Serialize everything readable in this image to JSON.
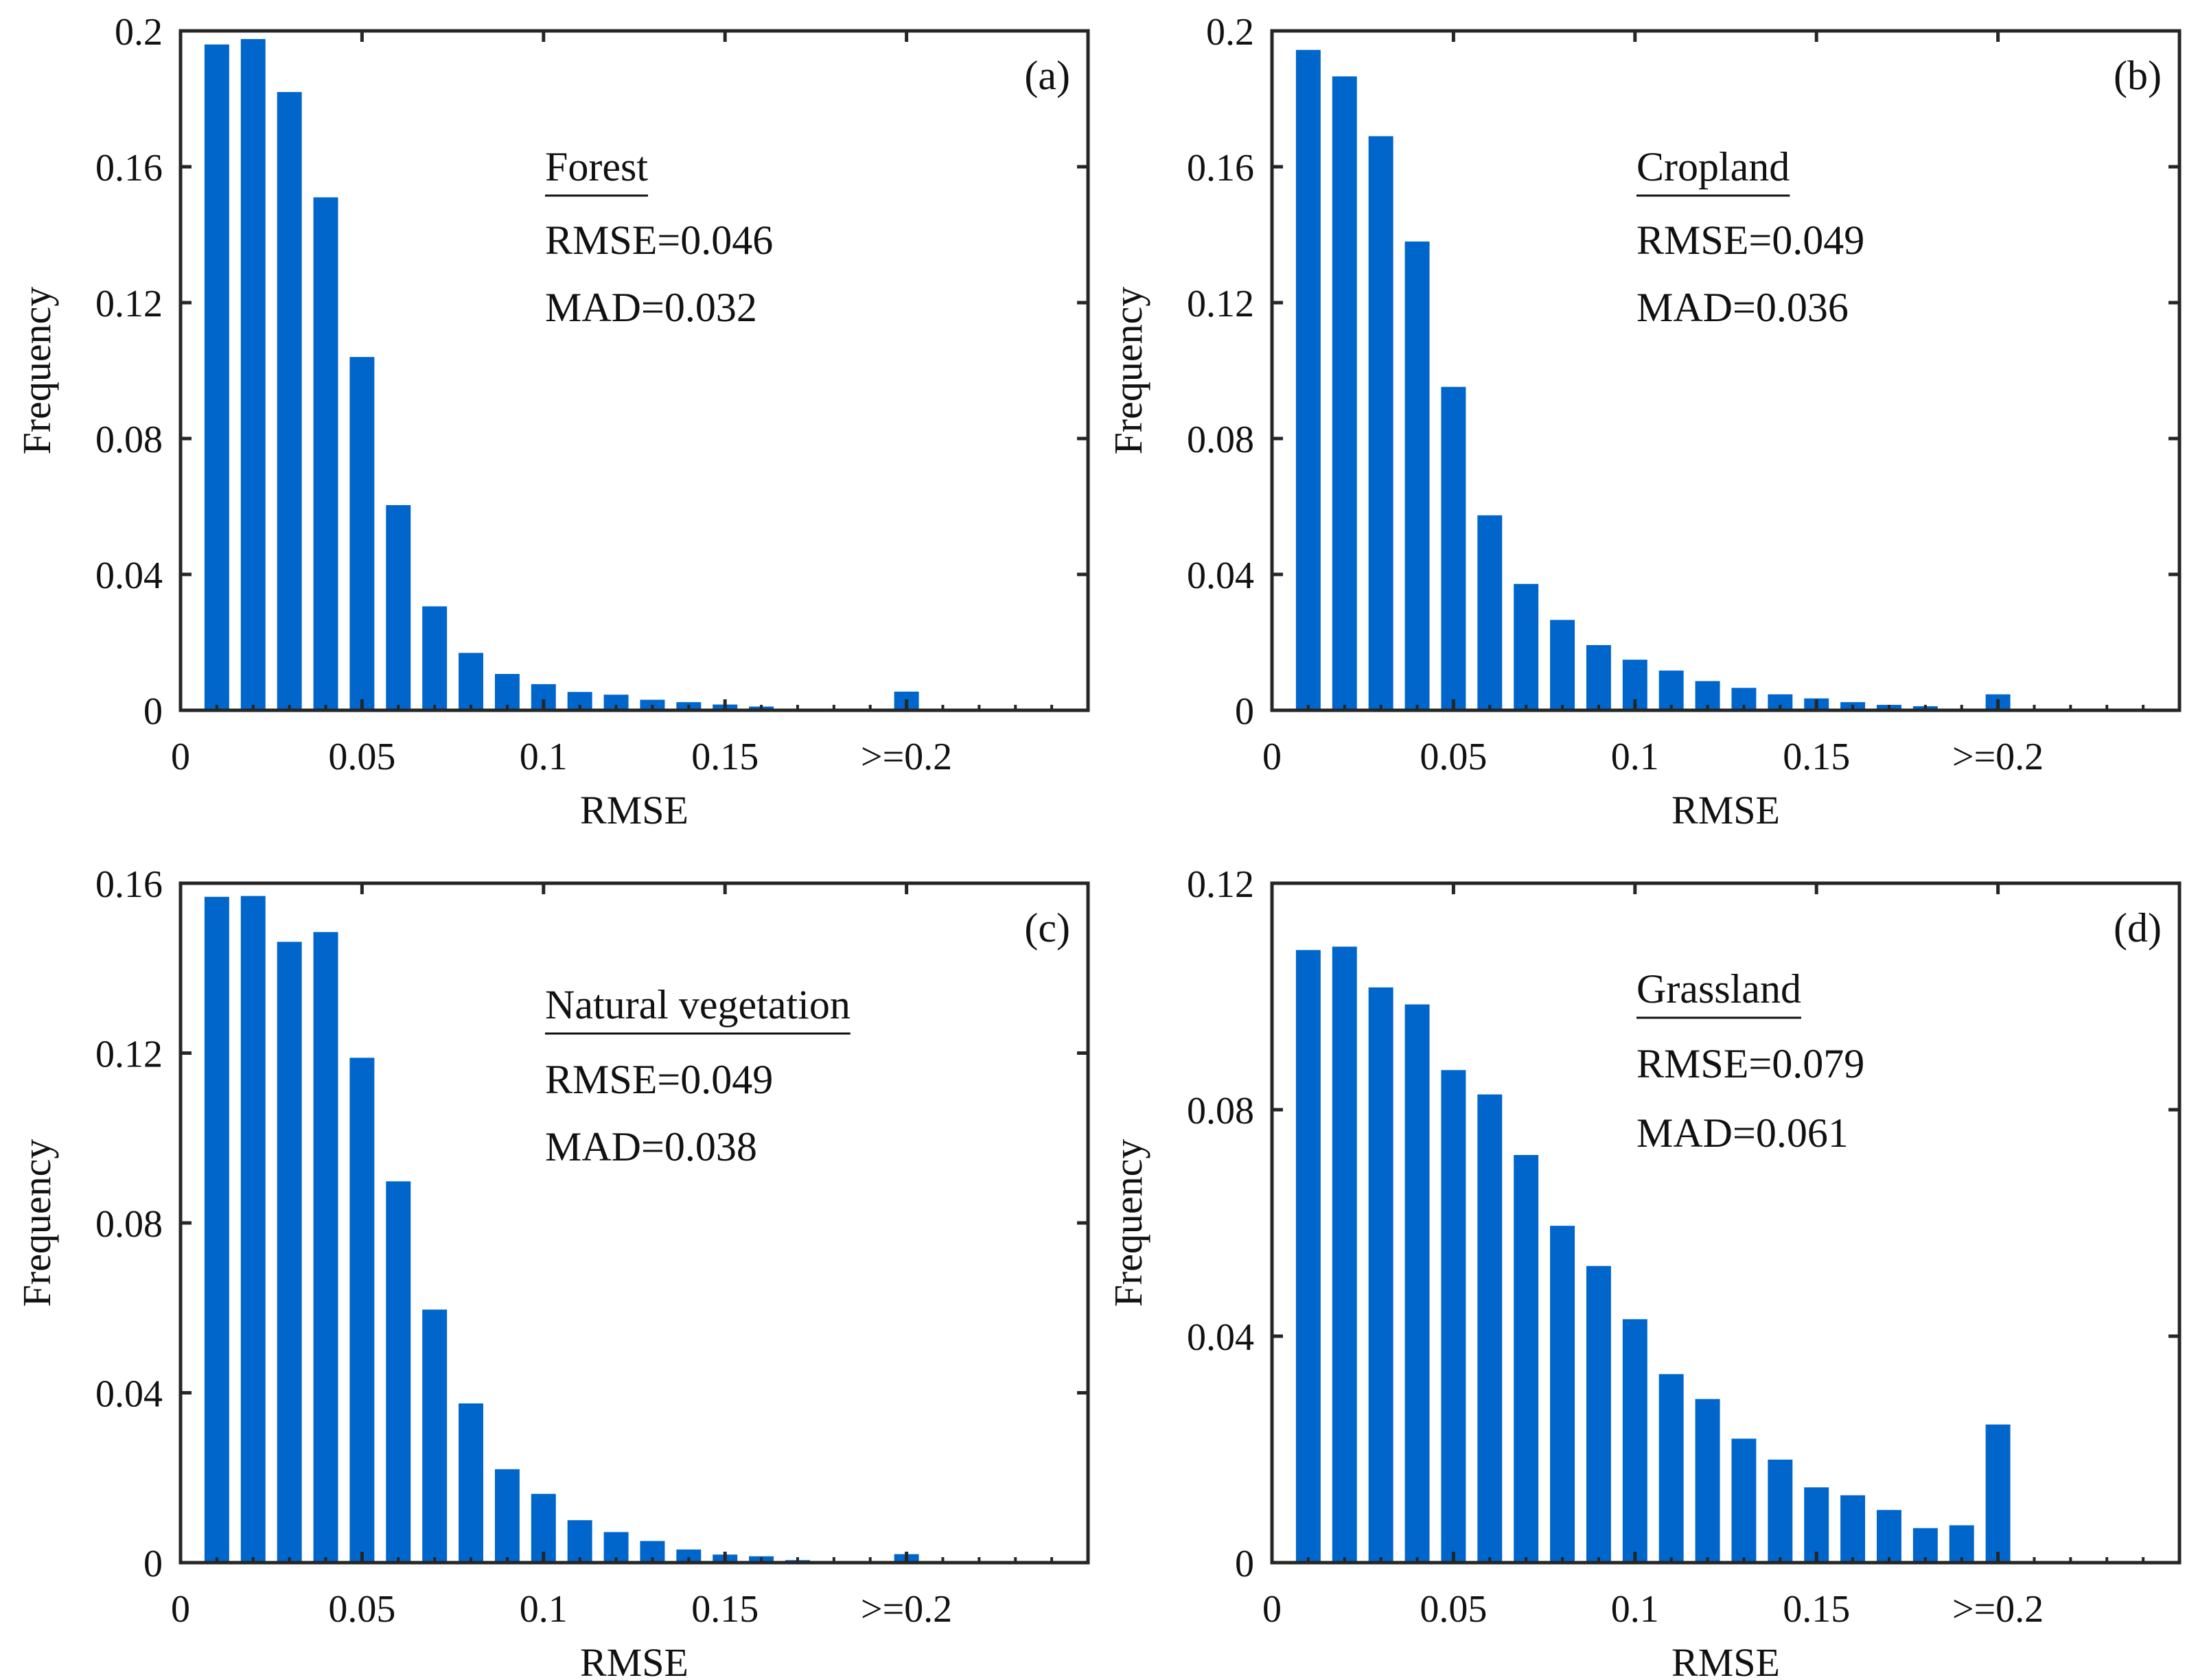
{
  "colors": {
    "bar": "#0066CC",
    "axis": "#262626"
  },
  "chart_data": [
    {
      "type": "bar",
      "panel": "(a)",
      "title": "Forest",
      "annotations": [
        "RMSE=0.046",
        "MAD=0.032"
      ],
      "xlabel": "RMSE",
      "ylabel": "Frequency",
      "xlim": [
        0,
        0.25
      ],
      "ylim": [
        0,
        0.2
      ],
      "xticks": [
        0,
        0.05,
        0.1,
        0.15,
        0.2
      ],
      "xtick_labels": [
        "0",
        "0.05",
        "0.1",
        "0.15",
        ">=0.2"
      ],
      "yticks": [
        0,
        0.04,
        0.08,
        0.12,
        0.16,
        0.2
      ],
      "ytick_labels": [
        "0",
        "0.04",
        "0.08",
        "0.12",
        "0.16",
        "0.2"
      ],
      "x": [
        0.01,
        0.02,
        0.03,
        0.04,
        0.05,
        0.06,
        0.07,
        0.08,
        0.09,
        0.1,
        0.11,
        0.12,
        0.13,
        0.14,
        0.15,
        0.16,
        0.17,
        0.18,
        0.19,
        0.2
      ],
      "values": [
        0.196,
        0.1976,
        0.182,
        0.151,
        0.104,
        0.0604,
        0.0306,
        0.0169,
        0.0107,
        0.0077,
        0.0054,
        0.0046,
        0.0031,
        0.0024,
        0.0017,
        0.0011,
        0.0005,
        0,
        0,
        0.0055
      ]
    },
    {
      "type": "bar",
      "panel": "(b)",
      "title": "Cropland",
      "annotations": [
        "RMSE=0.049",
        "MAD=0.036"
      ],
      "xlabel": "RMSE",
      "ylabel": "Frequency",
      "xlim": [
        0,
        0.25
      ],
      "ylim": [
        0,
        0.2
      ],
      "xticks": [
        0,
        0.05,
        0.1,
        0.15,
        0.2
      ],
      "xtick_labels": [
        "0",
        "0.05",
        "0.1",
        "0.15",
        ">=0.2"
      ],
      "yticks": [
        0,
        0.04,
        0.08,
        0.12,
        0.16,
        0.2
      ],
      "ytick_labels": [
        "0",
        "0.04",
        "0.08",
        "0.12",
        "0.16",
        "0.2"
      ],
      "x": [
        0.01,
        0.02,
        0.03,
        0.04,
        0.05,
        0.06,
        0.07,
        0.08,
        0.09,
        0.1,
        0.11,
        0.12,
        0.13,
        0.14,
        0.15,
        0.16,
        0.17,
        0.18,
        0.19,
        0.2
      ],
      "values": [
        0.1944,
        0.1866,
        0.169,
        0.138,
        0.0952,
        0.0574,
        0.0372,
        0.0266,
        0.0192,
        0.0149,
        0.0117,
        0.0086,
        0.0066,
        0.0047,
        0.0035,
        0.0024,
        0.0016,
        0.0012,
        0.0005,
        0.0047
      ]
    },
    {
      "type": "bar",
      "panel": "(c)",
      "title": "Natural vegetation",
      "annotations": [
        "RMSE=0.049",
        "MAD=0.038"
      ],
      "xlabel": "RMSE",
      "ylabel": "Frequency",
      "xlim": [
        0,
        0.25
      ],
      "ylim": [
        0,
        0.16
      ],
      "xticks": [
        0,
        0.05,
        0.1,
        0.15,
        0.2
      ],
      "xtick_labels": [
        "0",
        "0.05",
        "0.1",
        "0.15",
        ">=0.2"
      ],
      "yticks": [
        0,
        0.04,
        0.08,
        0.12,
        0.16
      ],
      "ytick_labels": [
        "0",
        "0.04",
        "0.08",
        "0.12",
        "0.16"
      ],
      "x": [
        0.01,
        0.02,
        0.03,
        0.04,
        0.05,
        0.06,
        0.07,
        0.08,
        0.09,
        0.1,
        0.11,
        0.12,
        0.13,
        0.14,
        0.15,
        0.16,
        0.17,
        0.18,
        0.19,
        0.2
      ],
      "values": [
        0.1568,
        0.157,
        0.1462,
        0.1485,
        0.1189,
        0.0898,
        0.0596,
        0.0375,
        0.022,
        0.0162,
        0.01,
        0.0072,
        0.0051,
        0.0031,
        0.0019,
        0.0015,
        0.0006,
        0,
        0,
        0.002
      ]
    },
    {
      "type": "bar",
      "panel": "(d)",
      "title": "Grassland",
      "annotations": [
        "RMSE=0.079",
        "MAD=0.061"
      ],
      "xlabel": "RMSE",
      "ylabel": "Frequency",
      "xlim": [
        0,
        0.25
      ],
      "ylim": [
        0,
        0.12
      ],
      "xticks": [
        0,
        0.05,
        0.1,
        0.15,
        0.2
      ],
      "xtick_labels": [
        "0",
        "0.05",
        "0.1",
        "0.15",
        ">=0.2"
      ],
      "yticks": [
        0,
        0.04,
        0.08,
        0.12
      ],
      "ytick_labels": [
        "0",
        "0.04",
        "0.08",
        "0.12"
      ],
      "x": [
        0.01,
        0.02,
        0.03,
        0.04,
        0.05,
        0.06,
        0.07,
        0.08,
        0.09,
        0.1,
        0.11,
        0.12,
        0.13,
        0.14,
        0.15,
        0.16,
        0.17,
        0.18,
        0.19,
        0.2
      ],
      "values": [
        0.1082,
        0.1088,
        0.1016,
        0.0986,
        0.087,
        0.0827,
        0.072,
        0.0595,
        0.0524,
        0.043,
        0.0333,
        0.0289,
        0.0219,
        0.0182,
        0.0133,
        0.0119,
        0.0093,
        0.0061,
        0.0066,
        0.0244
      ]
    }
  ]
}
